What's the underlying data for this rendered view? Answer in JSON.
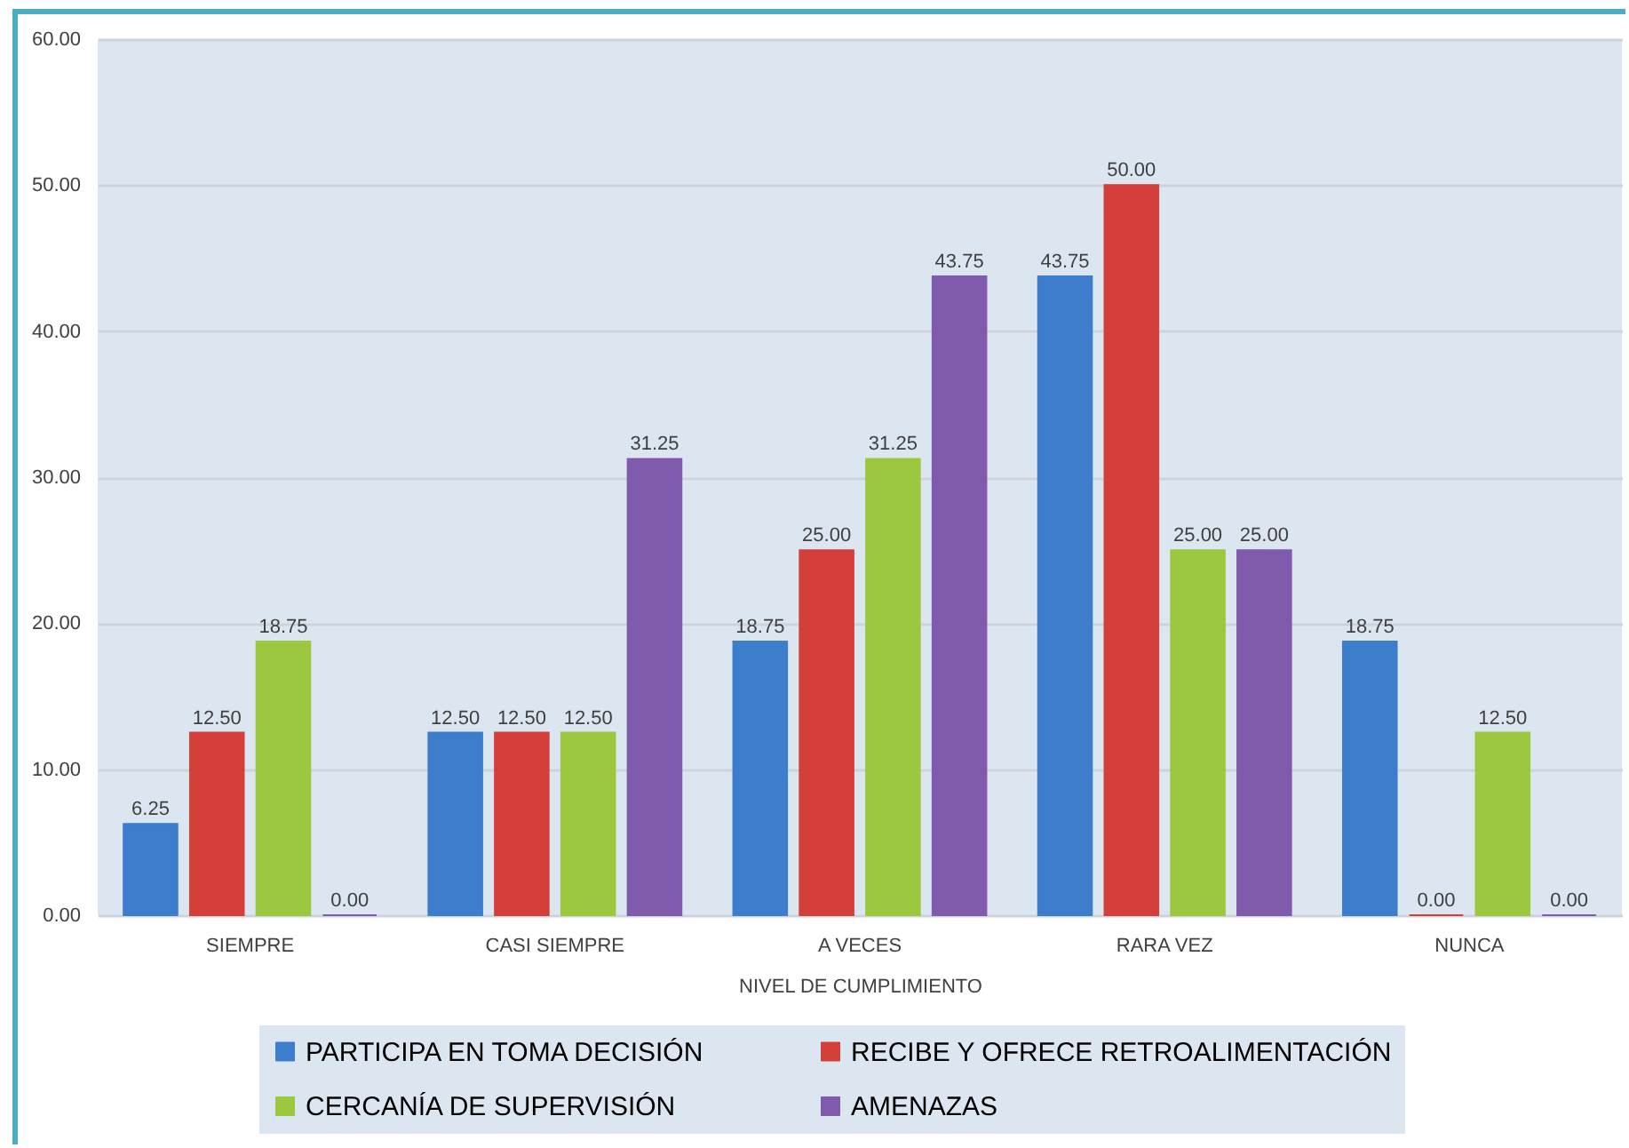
{
  "chart_data": {
    "type": "bar",
    "xlabel": "NIVEL DE CUMPLIMIENTO",
    "categories": [
      "SIEMPRE",
      "CASI SIEMPRE",
      "A VECES",
      "RARA VEZ",
      "NUNCA"
    ],
    "series": [
      {
        "name": "PARTICIPA EN TOMA DECISIÓN",
        "color": "#3c7dcc",
        "values": [
          6.25,
          12.5,
          18.75,
          43.75,
          18.75
        ],
        "value_labels": [
          "6.25",
          "12.50",
          "18.75",
          "43.75",
          "18.75"
        ]
      },
      {
        "name": "RECIBE Y OFRECE RETROALIMENTACIÓN",
        "color": "#d43f3a",
        "values": [
          12.5,
          12.5,
          25,
          50,
          0
        ],
        "value_labels": [
          "12.50",
          "12.50",
          "25.00",
          "50.00",
          "0.00"
        ]
      },
      {
        "name": "CERCANÍA DE SUPERVISIÓN",
        "color": "#9bc83f",
        "values": [
          18.75,
          12.5,
          31.25,
          25,
          12.5
        ],
        "value_labels": [
          "18.75",
          "12.50",
          "31.25",
          "25.00",
          "12.50"
        ]
      },
      {
        "name": "AMENAZAS",
        "color": "#7f5aad",
        "values": [
          0,
          31.25,
          43.75,
          25,
          0
        ],
        "value_labels": [
          "0.00",
          "31.25",
          "43.75",
          "25.00",
          "0.00"
        ]
      }
    ],
    "ylim": [
      0,
      60
    ],
    "yticks": [
      {
        "value": 0,
        "label": "0.00"
      },
      {
        "value": 10,
        "label": "10.00"
      },
      {
        "value": 20,
        "label": "20.00"
      },
      {
        "value": 30,
        "label": "30.00"
      },
      {
        "value": 40,
        "label": "40.00"
      },
      {
        "value": 50,
        "label": "50.00"
      },
      {
        "value": 60,
        "label": "60.00"
      }
    ],
    "grid": "y",
    "legend": "bottom"
  }
}
